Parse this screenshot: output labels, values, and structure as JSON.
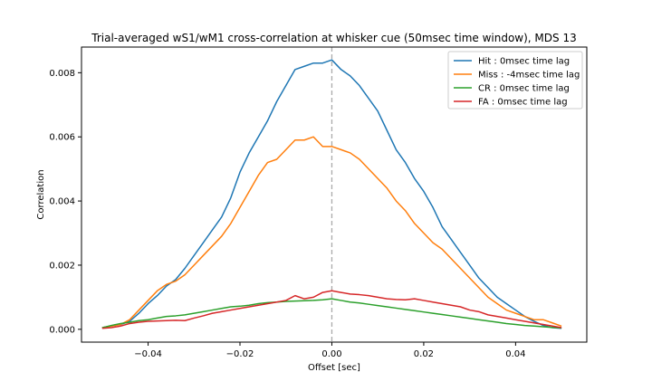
{
  "chart_data": {
    "type": "line",
    "title": "Trial-averaged wS1/wM1 cross-correlation at whisker cue (50msec time window), MDS 13",
    "xlabel": "Offset [sec]",
    "ylabel": "Correlation",
    "xlim": [
      -0.0545,
      0.0555
    ],
    "ylim": [
      -0.0004,
      0.0088
    ],
    "xticks": [
      -0.04,
      -0.02,
      0.0,
      0.02,
      0.04
    ],
    "xtick_labels": [
      "−0.04",
      "−0.02",
      "0.00",
      "0.02",
      "0.04"
    ],
    "yticks": [
      0.0,
      0.002,
      0.004,
      0.006,
      0.008
    ],
    "ytick_labels": [
      "0.000",
      "0.002",
      "0.004",
      "0.006",
      "0.008"
    ],
    "grid": false,
    "legend_position": "top-right",
    "reference_line": {
      "x": 0.0,
      "style": "dashed",
      "color": "#aaaaaa"
    },
    "series": [
      {
        "name": "Hit : 0msec time lag",
        "color": "#1f77b4",
        "x": [
          -0.05,
          -0.048,
          -0.046,
          -0.044,
          -0.042,
          -0.04,
          -0.038,
          -0.036,
          -0.034,
          -0.032,
          -0.03,
          -0.028,
          -0.026,
          -0.024,
          -0.022,
          -0.02,
          -0.018,
          -0.016,
          -0.014,
          -0.012,
          -0.01,
          -0.008,
          -0.006,
          -0.004,
          -0.002,
          0.0,
          0.002,
          0.004,
          0.006,
          0.008,
          0.01,
          0.012,
          0.014,
          0.016,
          0.018,
          0.02,
          0.022,
          0.024,
          0.026,
          0.028,
          0.03,
          0.032,
          0.034,
          0.036,
          0.038,
          0.04,
          0.042,
          0.044,
          0.046,
          0.048,
          0.05
        ],
        "values": [
          5e-05,
          0.0001,
          0.00015,
          0.00025,
          0.0005,
          0.0008,
          0.00105,
          0.00135,
          0.00155,
          0.0019,
          0.0023,
          0.0027,
          0.0031,
          0.0035,
          0.0041,
          0.0049,
          0.0055,
          0.006,
          0.0065,
          0.0071,
          0.0076,
          0.0081,
          0.0082,
          0.0083,
          0.0083,
          0.0084,
          0.0081,
          0.0079,
          0.0076,
          0.0072,
          0.0068,
          0.0062,
          0.0056,
          0.0052,
          0.0047,
          0.0043,
          0.0038,
          0.0032,
          0.0028,
          0.0024,
          0.002,
          0.0016,
          0.0013,
          0.001,
          0.0008,
          0.0006,
          0.0004,
          0.00025,
          0.00012,
          5e-05,
          3e-05
        ]
      },
      {
        "name": "Miss : -4msec time lag",
        "color": "#ff7f0e",
        "x": [
          -0.05,
          -0.048,
          -0.046,
          -0.044,
          -0.042,
          -0.04,
          -0.038,
          -0.036,
          -0.034,
          -0.032,
          -0.03,
          -0.028,
          -0.026,
          -0.024,
          -0.022,
          -0.02,
          -0.018,
          -0.016,
          -0.014,
          -0.012,
          -0.01,
          -0.008,
          -0.006,
          -0.004,
          -0.002,
          0.0,
          0.002,
          0.004,
          0.006,
          0.008,
          0.01,
          0.012,
          0.014,
          0.016,
          0.018,
          0.02,
          0.022,
          0.024,
          0.026,
          0.028,
          0.03,
          0.032,
          0.034,
          0.036,
          0.038,
          0.04,
          0.042,
          0.044,
          0.046,
          0.048,
          0.05
        ],
        "values": [
          5e-05,
          0.0001,
          0.00015,
          0.0003,
          0.0006,
          0.0009,
          0.0012,
          0.0014,
          0.0015,
          0.0017,
          0.002,
          0.0023,
          0.0026,
          0.0029,
          0.0033,
          0.0038,
          0.0043,
          0.0048,
          0.0052,
          0.0053,
          0.0056,
          0.0059,
          0.0059,
          0.006,
          0.0057,
          0.0057,
          0.0056,
          0.0055,
          0.0053,
          0.005,
          0.0047,
          0.0044,
          0.004,
          0.0037,
          0.0033,
          0.003,
          0.0027,
          0.0025,
          0.0022,
          0.0019,
          0.0016,
          0.0013,
          0.001,
          0.0008,
          0.0006,
          0.0005,
          0.0004,
          0.0003,
          0.0003,
          0.0002,
          0.0001
        ]
      },
      {
        "name": "CR : 0msec time lag",
        "color": "#2ca02c",
        "x": [
          -0.05,
          -0.048,
          -0.046,
          -0.044,
          -0.042,
          -0.04,
          -0.038,
          -0.036,
          -0.034,
          -0.032,
          -0.03,
          -0.028,
          -0.026,
          -0.024,
          -0.022,
          -0.02,
          -0.018,
          -0.016,
          -0.014,
          -0.012,
          -0.01,
          -0.008,
          -0.006,
          -0.004,
          -0.002,
          0.0,
          0.002,
          0.004,
          0.006,
          0.008,
          0.01,
          0.012,
          0.014,
          0.016,
          0.018,
          0.02,
          0.022,
          0.024,
          0.026,
          0.028,
          0.03,
          0.032,
          0.034,
          0.036,
          0.038,
          0.04,
          0.042,
          0.044,
          0.046,
          0.048,
          0.05
        ],
        "values": [
          5e-05,
          0.00012,
          0.00018,
          0.00022,
          0.00027,
          0.0003,
          0.00035,
          0.0004,
          0.00042,
          0.00045,
          0.0005,
          0.00055,
          0.0006,
          0.00065,
          0.0007,
          0.00072,
          0.00075,
          0.0008,
          0.00083,
          0.00085,
          0.00087,
          0.00088,
          0.00089,
          0.0009,
          0.00092,
          0.00095,
          0.0009,
          0.00085,
          0.00082,
          0.00078,
          0.00074,
          0.0007,
          0.00066,
          0.00062,
          0.00058,
          0.00054,
          0.0005,
          0.00046,
          0.00042,
          0.00038,
          0.00034,
          0.0003,
          0.00026,
          0.00022,
          0.00018,
          0.00015,
          0.00012,
          0.0001,
          8e-05,
          6e-05,
          4e-05
        ]
      },
      {
        "name": "FA : 0msec time lag",
        "color": "#d62728",
        "x": [
          -0.05,
          -0.048,
          -0.046,
          -0.044,
          -0.042,
          -0.04,
          -0.038,
          -0.036,
          -0.034,
          -0.032,
          -0.03,
          -0.028,
          -0.026,
          -0.024,
          -0.022,
          -0.02,
          -0.018,
          -0.016,
          -0.014,
          -0.012,
          -0.01,
          -0.008,
          -0.006,
          -0.004,
          -0.002,
          0.0,
          0.002,
          0.004,
          0.006,
          0.008,
          0.01,
          0.012,
          0.014,
          0.016,
          0.018,
          0.02,
          0.022,
          0.024,
          0.026,
          0.028,
          0.03,
          0.032,
          0.034,
          0.036,
          0.038,
          0.04,
          0.042,
          0.044,
          0.046,
          0.048,
          0.05
        ],
        "values": [
          3e-05,
          5e-05,
          0.0001,
          0.00018,
          0.00022,
          0.00025,
          0.00026,
          0.00027,
          0.00028,
          0.00027,
          0.00035,
          0.00042,
          0.0005,
          0.00055,
          0.0006,
          0.00065,
          0.0007,
          0.00075,
          0.0008,
          0.00085,
          0.0009,
          0.00105,
          0.00095,
          0.001,
          0.00115,
          0.0012,
          0.00115,
          0.0011,
          0.00108,
          0.00105,
          0.001,
          0.00095,
          0.00093,
          0.00092,
          0.00095,
          0.0009,
          0.00085,
          0.0008,
          0.00075,
          0.0007,
          0.0006,
          0.00055,
          0.00045,
          0.0004,
          0.00035,
          0.0003,
          0.00025,
          0.0002,
          0.00015,
          0.0001,
          5e-05
        ]
      }
    ]
  }
}
